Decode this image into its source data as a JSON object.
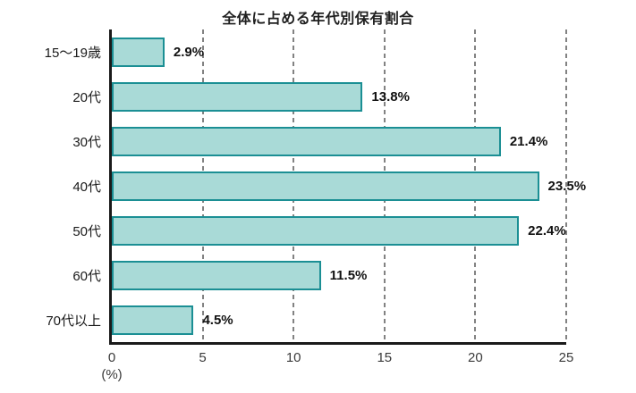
{
  "chart_data": {
    "type": "bar",
    "orientation": "horizontal",
    "title": "全体に占める年代別保有割合",
    "categories": [
      "15〜19歳",
      "20代",
      "30代",
      "40代",
      "50代",
      "60代",
      "70代以上"
    ],
    "values": [
      2.9,
      13.8,
      21.4,
      23.5,
      22.4,
      11.5,
      4.5
    ],
    "value_labels": [
      "2.9%",
      "13.8%",
      "21.4%",
      "23.5%",
      "22.4%",
      "11.5%",
      "4.5%"
    ],
    "xlabel": "(%)",
    "xlim": [
      0,
      25
    ],
    "x_ticks": [
      0,
      5,
      10,
      15,
      20,
      25
    ],
    "grid": "vertical-dashed",
    "legend": "none",
    "colors": {
      "bar_fill": "#A9DAD7",
      "bar_border": "#1B8F94",
      "axis": "#1A1A1A",
      "gridline": "#828282",
      "text": "#1A1A1A"
    }
  }
}
